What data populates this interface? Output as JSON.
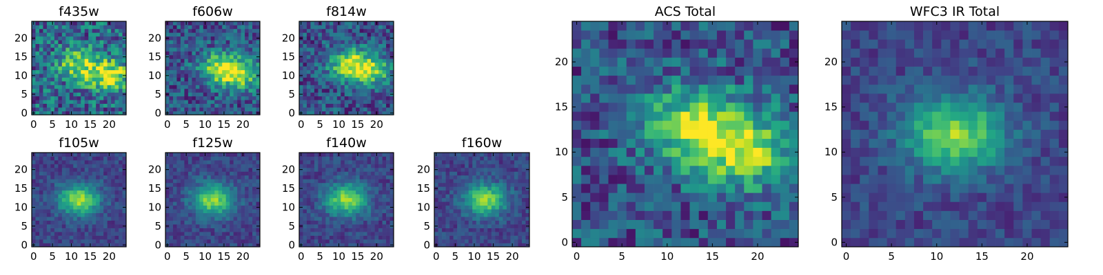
{
  "chart_data": [
    {
      "type": "heatmap",
      "title": "f435w",
      "xticks": [
        0,
        5,
        10,
        15,
        20
      ],
      "yticks": [
        0,
        5,
        10,
        15,
        20
      ],
      "xlim": [
        -0.5,
        24.5
      ],
      "ylim": [
        -0.5,
        24.5
      ],
      "grid_size": 25,
      "colormap": "viridis",
      "peak": [
        {
          "x": 20,
          "y": 10,
          "intensity": 1.0
        },
        {
          "x": 12,
          "y": 13,
          "intensity": 0.8
        }
      ],
      "noise": "high"
    },
    {
      "type": "heatmap",
      "title": "f606w",
      "xticks": [
        0,
        5,
        10,
        15,
        20
      ],
      "yticks": [
        0,
        5,
        10,
        15,
        20
      ],
      "xlim": [
        -0.5,
        24.5
      ],
      "ylim": [
        -0.5,
        24.5
      ],
      "grid_size": 25,
      "colormap": "viridis",
      "peak": [
        {
          "x": 14,
          "y": 12,
          "intensity": 1.0
        },
        {
          "x": 20,
          "y": 10,
          "intensity": 0.8
        }
      ],
      "noise": "medium"
    },
    {
      "type": "heatmap",
      "title": "f814w",
      "xticks": [
        0,
        5,
        10,
        15,
        20
      ],
      "yticks": [
        0,
        5,
        10,
        15,
        20
      ],
      "xlim": [
        -0.5,
        24.5
      ],
      "ylim": [
        -0.5,
        24.5
      ],
      "grid_size": 25,
      "colormap": "viridis",
      "peak": [
        {
          "x": 13,
          "y": 13,
          "intensity": 1.0
        },
        {
          "x": 19,
          "y": 11,
          "intensity": 0.7
        }
      ],
      "noise": "medium"
    },
    {
      "type": "heatmap",
      "title": "f105w",
      "xticks": [
        0,
        5,
        10,
        15,
        20
      ],
      "yticks": [
        0,
        5,
        10,
        15,
        20
      ],
      "xlim": [
        -0.5,
        24.5
      ],
      "ylim": [
        -0.5,
        24.5
      ],
      "grid_size": 25,
      "colormap": "viridis",
      "peak": [
        {
          "x": 12,
          "y": 12,
          "intensity": 1.0
        }
      ],
      "noise": "low"
    },
    {
      "type": "heatmap",
      "title": "f125w",
      "xticks": [
        0,
        5,
        10,
        15,
        20
      ],
      "yticks": [
        0,
        5,
        10,
        15,
        20
      ],
      "xlim": [
        -0.5,
        24.5
      ],
      "ylim": [
        -0.5,
        24.5
      ],
      "grid_size": 25,
      "colormap": "viridis",
      "peak": [
        {
          "x": 12,
          "y": 12,
          "intensity": 1.0
        }
      ],
      "noise": "low"
    },
    {
      "type": "heatmap",
      "title": "f140w",
      "xticks": [
        0,
        5,
        10,
        15,
        20
      ],
      "yticks": [
        0,
        5,
        10,
        15,
        20
      ],
      "xlim": [
        -0.5,
        24.5
      ],
      "ylim": [
        -0.5,
        24.5
      ],
      "grid_size": 25,
      "colormap": "viridis",
      "peak": [
        {
          "x": 12,
          "y": 12,
          "intensity": 1.0
        }
      ],
      "noise": "low"
    },
    {
      "type": "heatmap",
      "title": "f160w",
      "xticks": [
        0,
        5,
        10,
        15,
        20
      ],
      "yticks": [
        0,
        5,
        10,
        15,
        20
      ],
      "xlim": [
        -0.5,
        24.5
      ],
      "ylim": [
        -0.5,
        24.5
      ],
      "grid_size": 25,
      "colormap": "viridis",
      "peak": [
        {
          "x": 13,
          "y": 12,
          "intensity": 1.0
        }
      ],
      "noise": "low"
    },
    {
      "type": "heatmap",
      "title": "ACS Total",
      "xticks": [
        0,
        5,
        10,
        15,
        20
      ],
      "yticks": [
        0,
        5,
        10,
        15,
        20
      ],
      "xlim": [
        -0.5,
        24.5
      ],
      "ylim": [
        -0.5,
        24.5
      ],
      "grid_size": 25,
      "colormap": "viridis",
      "peak": [
        {
          "x": 13,
          "y": 13,
          "intensity": 1.0
        },
        {
          "x": 19,
          "y": 10,
          "intensity": 0.9
        }
      ],
      "noise": "medium"
    },
    {
      "type": "heatmap",
      "title": "WFC3 IR Total",
      "xticks": [
        0,
        5,
        10,
        15,
        20
      ],
      "yticks": [
        0,
        5,
        10,
        15,
        20
      ],
      "xlim": [
        -0.5,
        24.5
      ],
      "ylim": [
        -0.5,
        24.5
      ],
      "grid_size": 25,
      "colormap": "viridis",
      "peak": [
        {
          "x": 12,
          "y": 12,
          "intensity": 1.0
        }
      ],
      "noise": "low"
    }
  ]
}
